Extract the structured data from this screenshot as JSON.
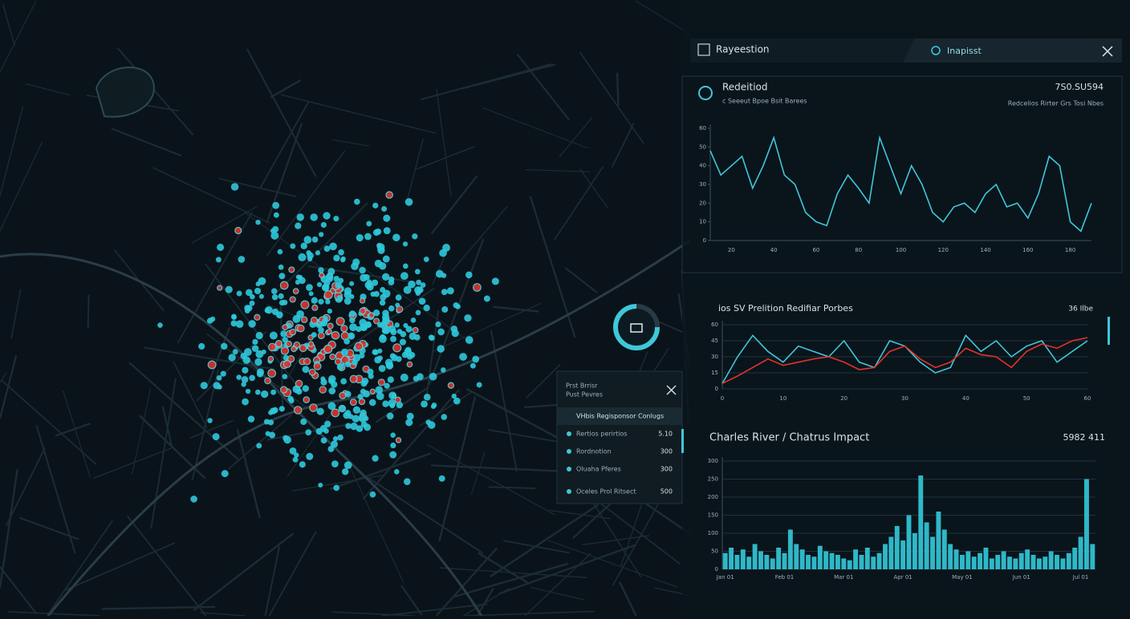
{
  "header": {
    "title": "Rayeestion",
    "tab": "Inapisst"
  },
  "side_panel": {
    "title_lines": [
      "Prst Brrisr",
      "Pust Pevres"
    ],
    "header": "VHbis Regisponsor Conlugs",
    "rows": [
      [
        "Rertios perirtios",
        "5.10"
      ],
      [
        "Rordnotion",
        "300"
      ],
      [
        "Oluaha Pferes",
        "300"
      ],
      [
        "Oceles Prol Ritsect",
        "500"
      ]
    ]
  },
  "chart_data": [
    {
      "type": "line",
      "title": "Redeitiod",
      "subtitle": "c Seeeut   Bpoe   Bsit Barees",
      "annotation": "7S0.SU594",
      "legend_text": "Redcelios Rirter   Grs   Tosi Nbes",
      "grid": false,
      "x": [
        10,
        15,
        20,
        25,
        30,
        35,
        40,
        45,
        50,
        55,
        60,
        65,
        70,
        75,
        80,
        85,
        90,
        95,
        100,
        105,
        110,
        115,
        120,
        125,
        130,
        135,
        140,
        145,
        150,
        155,
        160,
        165,
        170,
        175,
        180,
        185,
        190
      ],
      "series": [
        {
          "color": "#3fc7d9",
          "values": [
            48,
            35,
            40,
            45,
            28,
            40,
            55,
            35,
            30,
            15,
            10,
            8,
            25,
            35,
            28,
            20,
            55,
            40,
            25,
            40,
            30,
            15,
            10,
            18,
            20,
            15,
            25,
            30,
            18,
            20,
            12,
            25,
            45,
            40,
            10,
            5,
            20
          ]
        }
      ],
      "xlim": [
        10,
        190
      ],
      "xticks": [
        20,
        40,
        60,
        80,
        100,
        120,
        140,
        160,
        180
      ],
      "ylim": [
        0,
        60
      ],
      "yticks": [
        0,
        10,
        20,
        30,
        40,
        50,
        60
      ]
    },
    {
      "type": "line",
      "title": "ios SV Prelition Redifiar Porbes",
      "annotation": "36 Ilbe",
      "grid": true,
      "x": [
        0,
        2.5,
        5,
        7.5,
        10,
        12.5,
        15,
        17.5,
        20,
        22.5,
        25,
        27.5,
        30,
        32.5,
        35,
        37.5,
        40,
        42.5,
        45,
        47.5,
        50,
        52.5,
        55,
        57.5,
        60
      ],
      "series": [
        {
          "color": "#3fc7d9",
          "values": [
            5,
            30,
            50,
            35,
            25,
            40,
            35,
            30,
            45,
            25,
            20,
            45,
            40,
            25,
            15,
            20,
            50,
            35,
            45,
            30,
            40,
            45,
            25,
            35,
            45
          ]
        },
        {
          "color": "#e0332b",
          "values": [
            5,
            12,
            20,
            28,
            22,
            25,
            28,
            30,
            25,
            18,
            20,
            35,
            40,
            28,
            20,
            25,
            38,
            32,
            30,
            20,
            35,
            42,
            38,
            45,
            48
          ]
        }
      ],
      "xlim": [
        0,
        60
      ],
      "xticks": [
        0,
        10,
        20,
        30,
        40,
        50,
        60
      ],
      "ylim": [
        0,
        60
      ],
      "yticks": [
        0,
        15,
        30,
        45,
        60
      ]
    },
    {
      "type": "bar",
      "title": "Charles River / Chatrus Impact",
      "annotation": "5982 411",
      "grid": true,
      "color": "#2fb8c8",
      "categories": [
        "Jan 01",
        null,
        null,
        null,
        null,
        null,
        null,
        null,
        null,
        null,
        "Feb 01",
        null,
        null,
        null,
        null,
        null,
        null,
        null,
        null,
        null,
        "Mar 01",
        null,
        null,
        null,
        null,
        null,
        null,
        null,
        null,
        null,
        "Apr 01",
        null,
        null,
        null,
        null,
        null,
        null,
        null,
        null,
        null,
        "May 01",
        null,
        null,
        null,
        null,
        null,
        null,
        null,
        null,
        null,
        "Jun 01",
        null,
        null,
        null,
        null,
        null,
        null,
        null,
        null,
        null,
        "Jul 01",
        null,
        null
      ],
      "values": [
        45,
        60,
        40,
        55,
        35,
        70,
        50,
        40,
        30,
        60,
        45,
        110,
        70,
        55,
        40,
        35,
        65,
        50,
        45,
        40,
        30,
        25,
        55,
        40,
        60,
        35,
        45,
        70,
        90,
        120,
        80,
        150,
        100,
        260,
        130,
        90,
        160,
        110,
        70,
        55,
        40,
        50,
        35,
        45,
        60,
        30,
        40,
        50,
        35,
        30,
        45,
        55,
        40,
        30,
        35,
        50,
        40,
        30,
        45,
        60,
        90,
        250,
        70
      ],
      "ylim": [
        0,
        300
      ],
      "yticks": [
        0,
        50,
        100,
        150,
        200,
        250,
        300
      ]
    }
  ]
}
